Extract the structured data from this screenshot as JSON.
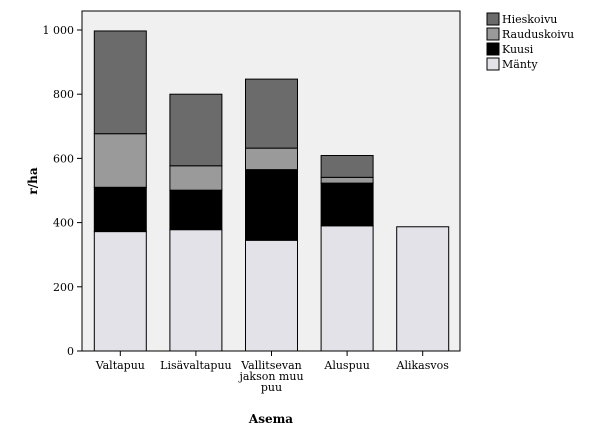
{
  "chart_data": {
    "type": "bar",
    "stacked": true,
    "categories": [
      [
        "Valtapuu"
      ],
      [
        "Lisävaltapuu"
      ],
      [
        "Vallitsevan",
        "jakson muu",
        "puu"
      ],
      [
        "Aluspuu"
      ],
      [
        "Alikasvos"
      ]
    ],
    "series": [
      {
        "name": "Mänty",
        "color": "#e2e2e8",
        "values": [
          372,
          378,
          345,
          390,
          387
        ]
      },
      {
        "name": "Kuusi",
        "color": "#000000",
        "values": [
          138,
          123,
          220,
          133,
          0
        ]
      },
      {
        "name": "Rauduskoivu",
        "color": "#9a9a9a",
        "values": [
          167,
          76,
          67,
          18,
          0
        ]
      },
      {
        "name": "Hieskoivu",
        "color": "#6b6b6b",
        "values": [
          320,
          223,
          215,
          68,
          0
        ]
      }
    ],
    "xlabel": "Asema",
    "ylabel": "r/ha",
    "ylim": [
      0,
      1000
    ],
    "yticks": [
      0,
      200,
      400,
      600,
      800,
      1000
    ],
    "ytick_labels": [
      "0",
      "200",
      "400",
      "600",
      "800",
      "1 000"
    ],
    "legend_position": "top-right",
    "legend_order": [
      "Hieskoivu",
      "Rauduskoivu",
      "Kuusi",
      "Mänty"
    ],
    "plot_background": "#f0f0f0",
    "grid": false
  }
}
